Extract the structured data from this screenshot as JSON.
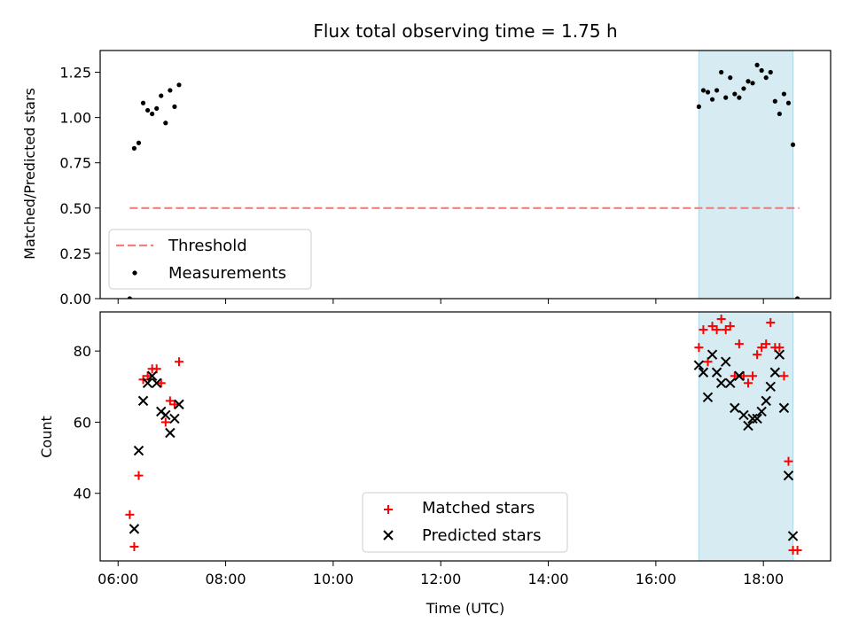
{
  "chart_data": [
    {
      "type": "scatter",
      "title": "Flux total observing time = 1.75 h",
      "xlabel": "",
      "ylabel": "Matched/Predicted stars",
      "xlim": [
        "05:40",
        "19:15"
      ],
      "ylim": [
        0,
        1.37
      ],
      "y_ticks": [
        "0.00",
        "0.25",
        "0.50",
        "0.75",
        "1.00",
        "1.25"
      ],
      "shaded_interval": {
        "start": "16:48",
        "end": "18:33",
        "color": "#add8e6"
      },
      "threshold": {
        "name": "Threshold",
        "value": 0.5,
        "x_start": "06:13",
        "x_end": "18:40",
        "color": "#f08080",
        "style": "dashed"
      },
      "series": [
        {
          "name": "Measurements",
          "color": "#000000",
          "marker": "dot",
          "points": [
            [
              "06:13",
              0.0
            ],
            [
              "06:18",
              0.83
            ],
            [
              "06:23",
              0.86
            ],
            [
              "06:28",
              1.08
            ],
            [
              "06:33",
              1.04
            ],
            [
              "06:38",
              1.02
            ],
            [
              "06:43",
              1.05
            ],
            [
              "06:48",
              1.12
            ],
            [
              "06:53",
              0.97
            ],
            [
              "06:58",
              1.15
            ],
            [
              "07:03",
              1.06
            ],
            [
              "07:08",
              1.18
            ],
            [
              "16:48",
              1.06
            ],
            [
              "16:53",
              1.15
            ],
            [
              "16:58",
              1.14
            ],
            [
              "17:03",
              1.1
            ],
            [
              "17:08",
              1.15
            ],
            [
              "17:13",
              1.25
            ],
            [
              "17:18",
              1.11
            ],
            [
              "17:23",
              1.22
            ],
            [
              "17:28",
              1.13
            ],
            [
              "17:33",
              1.11
            ],
            [
              "17:38",
              1.16
            ],
            [
              "17:43",
              1.2
            ],
            [
              "17:48",
              1.19
            ],
            [
              "17:53",
              1.29
            ],
            [
              "17:58",
              1.26
            ],
            [
              "18:03",
              1.22
            ],
            [
              "18:08",
              1.25
            ],
            [
              "18:13",
              1.09
            ],
            [
              "18:18",
              1.02
            ],
            [
              "18:23",
              1.13
            ],
            [
              "18:28",
              1.08
            ],
            [
              "18:33",
              0.85
            ],
            [
              "18:38",
              0.0
            ]
          ]
        }
      ],
      "legend": {
        "placement": "lower-left",
        "entries": [
          "Threshold",
          "Measurements"
        ]
      }
    },
    {
      "type": "scatter",
      "title": "",
      "xlabel": "Time (UTC)",
      "ylabel": "Count",
      "xlim": [
        "05:40",
        "19:15"
      ],
      "ylim": [
        21,
        91
      ],
      "x_ticks": [
        "06:00",
        "08:00",
        "10:00",
        "12:00",
        "14:00",
        "16:00",
        "18:00"
      ],
      "y_ticks": [
        "40",
        "60",
        "80"
      ],
      "shaded_interval": {
        "start": "16:48",
        "end": "18:33",
        "color": "#add8e6"
      },
      "series": [
        {
          "name": "Matched stars",
          "color": "#ff0000",
          "marker": "plus",
          "points": [
            [
              "06:13",
              34
            ],
            [
              "06:18",
              25
            ],
            [
              "06:23",
              45
            ],
            [
              "06:28",
              72
            ],
            [
              "06:33",
              73
            ],
            [
              "06:38",
              75
            ],
            [
              "06:43",
              75
            ],
            [
              "06:48",
              71
            ],
            [
              "06:53",
              60
            ],
            [
              "06:58",
              66
            ],
            [
              "07:03",
              65
            ],
            [
              "07:08",
              77
            ],
            [
              "16:48",
              81
            ],
            [
              "16:53",
              86
            ],
            [
              "16:58",
              77
            ],
            [
              "17:03",
              87
            ],
            [
              "17:08",
              86
            ],
            [
              "17:13",
              89
            ],
            [
              "17:18",
              86
            ],
            [
              "17:23",
              87
            ],
            [
              "17:28",
              73
            ],
            [
              "17:33",
              82
            ],
            [
              "17:38",
              73
            ],
            [
              "17:43",
              71
            ],
            [
              "17:48",
              73
            ],
            [
              "17:53",
              79
            ],
            [
              "17:58",
              81
            ],
            [
              "18:03",
              82
            ],
            [
              "18:08",
              88
            ],
            [
              "18:13",
              81
            ],
            [
              "18:18",
              81
            ],
            [
              "18:23",
              73
            ],
            [
              "18:28",
              49
            ],
            [
              "18:33",
              24
            ],
            [
              "18:38",
              24
            ]
          ]
        },
        {
          "name": "Predicted stars",
          "color": "#000000",
          "marker": "x",
          "points": [
            [
              "06:18",
              30
            ],
            [
              "06:23",
              52
            ],
            [
              "06:28",
              66
            ],
            [
              "06:33",
              71
            ],
            [
              "06:38",
              73
            ],
            [
              "06:43",
              71
            ],
            [
              "06:48",
              63
            ],
            [
              "06:53",
              62
            ],
            [
              "06:58",
              57
            ],
            [
              "07:03",
              61
            ],
            [
              "07:08",
              65
            ],
            [
              "16:48",
              76
            ],
            [
              "16:53",
              74
            ],
            [
              "16:58",
              67
            ],
            [
              "17:03",
              79
            ],
            [
              "17:08",
              74
            ],
            [
              "17:13",
              71
            ],
            [
              "17:18",
              77
            ],
            [
              "17:23",
              71
            ],
            [
              "17:28",
              64
            ],
            [
              "17:33",
              73
            ],
            [
              "17:38",
              62
            ],
            [
              "17:43",
              59
            ],
            [
              "17:48",
              61
            ],
            [
              "17:53",
              61
            ],
            [
              "17:58",
              63
            ],
            [
              "18:03",
              66
            ],
            [
              "18:08",
              70
            ],
            [
              "18:13",
              74
            ],
            [
              "18:18",
              79
            ],
            [
              "18:23",
              64
            ],
            [
              "18:28",
              45
            ],
            [
              "18:33",
              28
            ]
          ]
        }
      ],
      "legend": {
        "placement": "lower-center",
        "entries": [
          "Matched stars",
          "Predicted stars"
        ]
      }
    }
  ]
}
